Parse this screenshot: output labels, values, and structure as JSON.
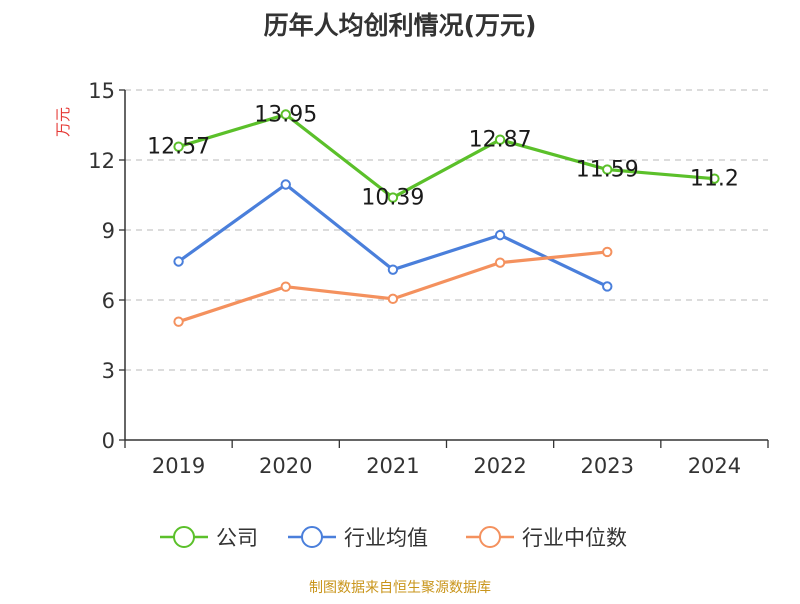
{
  "chart_data": {
    "type": "line",
    "title": "历年人均创利情况(万元)",
    "ylabel": "万元",
    "xlabel": "",
    "categories": [
      "2019",
      "2020",
      "2021",
      "2022",
      "2023",
      "2024"
    ],
    "ylim": [
      0,
      15
    ],
    "yticks": [
      0,
      3,
      6,
      9,
      12,
      15
    ],
    "grid": true,
    "legend_position": "bottom",
    "series": [
      {
        "name": "公司",
        "color": "#5bc02a",
        "values": [
          12.57,
          13.95,
          10.39,
          12.87,
          11.59,
          11.2
        ],
        "labels": [
          "12.57",
          "13.95",
          "10.39",
          "12.87",
          "11.59",
          "11.2"
        ]
      },
      {
        "name": "行业均值",
        "color": "#4a7fdb",
        "values": [
          7.65,
          10.95,
          7.3,
          8.78,
          6.58,
          null
        ]
      },
      {
        "name": "行业中位数",
        "color": "#f4915e",
        "values": [
          5.07,
          6.57,
          6.05,
          7.6,
          8.06,
          null
        ]
      }
    ],
    "source": "制图数据来自恒生聚源数据库",
    "colors": {
      "title": "#333333",
      "ylabel": "#e53935",
      "axis": "#333333",
      "grid": "#c8c8c8",
      "source": "#c9951b"
    }
  }
}
